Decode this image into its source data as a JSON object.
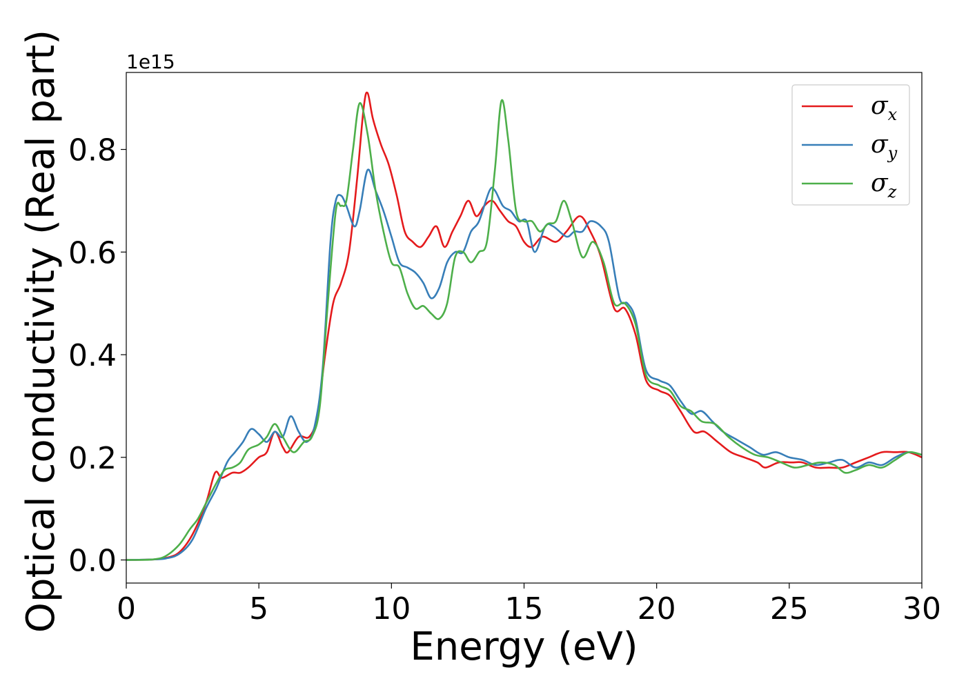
{
  "chart_data": {
    "type": "line",
    "title": "",
    "xlabel": "Energy (eV)",
    "ylabel": "Optical conductivity (Real part)",
    "offset_text": "1e15",
    "xlim": [
      0,
      30
    ],
    "ylim": [
      -0.045,
      0.95
    ],
    "xticks": [
      0,
      5,
      10,
      15,
      20,
      25,
      30
    ],
    "xtick_labels": [
      "0",
      "5",
      "10",
      "15",
      "20",
      "25",
      "30"
    ],
    "yticks": [
      0.0,
      0.2,
      0.4,
      0.6,
      0.8
    ],
    "ytick_labels": [
      "0.0",
      "0.2",
      "0.4",
      "0.6",
      "0.8"
    ],
    "grid": false,
    "legend_position": "top-right",
    "series": [
      {
        "symbol": "σ",
        "subscript": "x",
        "color": "#e41a1c",
        "points": [
          [
            0,
            0
          ],
          [
            1,
            0.001
          ],
          [
            1.5,
            0.004
          ],
          [
            2,
            0.015
          ],
          [
            2.5,
            0.05
          ],
          [
            3,
            0.11
          ],
          [
            3.35,
            0.17
          ],
          [
            3.6,
            0.16
          ],
          [
            4,
            0.17
          ],
          [
            4.3,
            0.17
          ],
          [
            4.6,
            0.18
          ],
          [
            5,
            0.2
          ],
          [
            5.3,
            0.21
          ],
          [
            5.6,
            0.25
          ],
          [
            5.9,
            0.22
          ],
          [
            6.1,
            0.21
          ],
          [
            6.5,
            0.24
          ],
          [
            6.9,
            0.24
          ],
          [
            7.2,
            0.28
          ],
          [
            7.5,
            0.4
          ],
          [
            7.8,
            0.5
          ],
          [
            8.1,
            0.54
          ],
          [
            8.4,
            0.6
          ],
          [
            8.7,
            0.74
          ],
          [
            8.95,
            0.88
          ],
          [
            9.1,
            0.91
          ],
          [
            9.3,
            0.86
          ],
          [
            9.6,
            0.81
          ],
          [
            9.9,
            0.77
          ],
          [
            10.2,
            0.71
          ],
          [
            10.5,
            0.64
          ],
          [
            10.8,
            0.62
          ],
          [
            11.1,
            0.61
          ],
          [
            11.4,
            0.63
          ],
          [
            11.7,
            0.65
          ],
          [
            12,
            0.61
          ],
          [
            12.3,
            0.64
          ],
          [
            12.6,
            0.67
          ],
          [
            12.9,
            0.7
          ],
          [
            13.2,
            0.67
          ],
          [
            13.5,
            0.69
          ],
          [
            13.8,
            0.7
          ],
          [
            14.1,
            0.68
          ],
          [
            14.4,
            0.66
          ],
          [
            14.7,
            0.65
          ],
          [
            15,
            0.62
          ],
          [
            15.3,
            0.61
          ],
          [
            15.7,
            0.63
          ],
          [
            16.2,
            0.62
          ],
          [
            16.6,
            0.64
          ],
          [
            17.1,
            0.67
          ],
          [
            17.5,
            0.64
          ],
          [
            17.9,
            0.59
          ],
          [
            18.4,
            0.49
          ],
          [
            18.8,
            0.49
          ],
          [
            19.2,
            0.44
          ],
          [
            19.6,
            0.35
          ],
          [
            20.1,
            0.33
          ],
          [
            20.5,
            0.32
          ],
          [
            20.9,
            0.29
          ],
          [
            21.4,
            0.25
          ],
          [
            21.8,
            0.25
          ],
          [
            22.3,
            0.23
          ],
          [
            22.8,
            0.21
          ],
          [
            23.3,
            0.2
          ],
          [
            23.8,
            0.19
          ],
          [
            24.1,
            0.18
          ],
          [
            24.6,
            0.19
          ],
          [
            25.1,
            0.19
          ],
          [
            25.5,
            0.19
          ],
          [
            26,
            0.18
          ],
          [
            26.5,
            0.18
          ],
          [
            27,
            0.18
          ],
          [
            27.5,
            0.19
          ],
          [
            28,
            0.2
          ],
          [
            28.5,
            0.21
          ],
          [
            29,
            0.21
          ],
          [
            29.5,
            0.21
          ],
          [
            30,
            0.2
          ]
        ]
      },
      {
        "symbol": "σ",
        "subscript": "y",
        "color": "#377eb8",
        "points": [
          [
            0,
            0
          ],
          [
            1,
            0.001
          ],
          [
            1.5,
            0.003
          ],
          [
            2,
            0.012
          ],
          [
            2.5,
            0.04
          ],
          [
            3,
            0.1
          ],
          [
            3.4,
            0.14
          ],
          [
            3.8,
            0.19
          ],
          [
            4.1,
            0.21
          ],
          [
            4.4,
            0.23
          ],
          [
            4.7,
            0.255
          ],
          [
            5,
            0.245
          ],
          [
            5.3,
            0.23
          ],
          [
            5.6,
            0.25
          ],
          [
            5.9,
            0.24
          ],
          [
            6.2,
            0.28
          ],
          [
            6.5,
            0.25
          ],
          [
            6.8,
            0.23
          ],
          [
            7.1,
            0.26
          ],
          [
            7.4,
            0.37
          ],
          [
            7.7,
            0.62
          ],
          [
            7.9,
            0.7
          ],
          [
            8.1,
            0.71
          ],
          [
            8.3,
            0.69
          ],
          [
            8.6,
            0.65
          ],
          [
            8.8,
            0.68
          ],
          [
            9.1,
            0.76
          ],
          [
            9.4,
            0.72
          ],
          [
            9.7,
            0.68
          ],
          [
            10,
            0.63
          ],
          [
            10.3,
            0.58
          ],
          [
            10.6,
            0.57
          ],
          [
            10.9,
            0.56
          ],
          [
            11.2,
            0.54
          ],
          [
            11.5,
            0.51
          ],
          [
            11.8,
            0.53
          ],
          [
            12.1,
            0.58
          ],
          [
            12.4,
            0.6
          ],
          [
            12.7,
            0.6
          ],
          [
            13,
            0.64
          ],
          [
            13.3,
            0.66
          ],
          [
            13.7,
            0.72
          ],
          [
            13.9,
            0.72
          ],
          [
            14.2,
            0.69
          ],
          [
            14.5,
            0.68
          ],
          [
            14.8,
            0.66
          ],
          [
            15.1,
            0.66
          ],
          [
            15.4,
            0.6
          ],
          [
            15.8,
            0.65
          ],
          [
            16.1,
            0.65
          ],
          [
            16.6,
            0.63
          ],
          [
            16.9,
            0.64
          ],
          [
            17.2,
            0.64
          ],
          [
            17.5,
            0.66
          ],
          [
            17.9,
            0.65
          ],
          [
            18.2,
            0.62
          ],
          [
            18.6,
            0.51
          ],
          [
            18.9,
            0.5
          ],
          [
            19.2,
            0.47
          ],
          [
            19.6,
            0.37
          ],
          [
            20.1,
            0.35
          ],
          [
            20.5,
            0.34
          ],
          [
            20.9,
            0.31
          ],
          [
            21.3,
            0.285
          ],
          [
            21.7,
            0.29
          ],
          [
            22.1,
            0.27
          ],
          [
            22.5,
            0.25
          ],
          [
            23,
            0.235
          ],
          [
            23.5,
            0.22
          ],
          [
            24,
            0.205
          ],
          [
            24.5,
            0.21
          ],
          [
            25,
            0.2
          ],
          [
            25.5,
            0.195
          ],
          [
            26,
            0.185
          ],
          [
            26.5,
            0.19
          ],
          [
            27,
            0.195
          ],
          [
            27.5,
            0.18
          ],
          [
            28,
            0.19
          ],
          [
            28.5,
            0.185
          ],
          [
            29,
            0.2
          ],
          [
            29.5,
            0.21
          ],
          [
            30,
            0.205
          ]
        ]
      },
      {
        "symbol": "σ",
        "subscript": "z",
        "color": "#4daf4a",
        "points": [
          [
            0,
            0
          ],
          [
            1,
            0.001
          ],
          [
            1.5,
            0.008
          ],
          [
            2,
            0.03
          ],
          [
            2.4,
            0.06
          ],
          [
            2.7,
            0.08
          ],
          [
            3,
            0.11
          ],
          [
            3.4,
            0.15
          ],
          [
            3.7,
            0.175
          ],
          [
            4,
            0.18
          ],
          [
            4.3,
            0.19
          ],
          [
            4.6,
            0.215
          ],
          [
            5,
            0.225
          ],
          [
            5.3,
            0.24
          ],
          [
            5.6,
            0.265
          ],
          [
            5.9,
            0.24
          ],
          [
            6.3,
            0.21
          ],
          [
            6.7,
            0.23
          ],
          [
            7,
            0.24
          ],
          [
            7.3,
            0.3
          ],
          [
            7.6,
            0.5
          ],
          [
            7.9,
            0.68
          ],
          [
            8.1,
            0.69
          ],
          [
            8.3,
            0.7
          ],
          [
            8.55,
            0.8
          ],
          [
            8.8,
            0.89
          ],
          [
            9.1,
            0.83
          ],
          [
            9.4,
            0.72
          ],
          [
            9.7,
            0.64
          ],
          [
            10,
            0.58
          ],
          [
            10.3,
            0.57
          ],
          [
            10.6,
            0.52
          ],
          [
            10.9,
            0.49
          ],
          [
            11.2,
            0.495
          ],
          [
            11.5,
            0.48
          ],
          [
            11.8,
            0.47
          ],
          [
            12.1,
            0.5
          ],
          [
            12.4,
            0.59
          ],
          [
            12.7,
            0.6
          ],
          [
            13,
            0.58
          ],
          [
            13.3,
            0.6
          ],
          [
            13.6,
            0.62
          ],
          [
            13.9,
            0.76
          ],
          [
            14.15,
            0.895
          ],
          [
            14.4,
            0.82
          ],
          [
            14.7,
            0.68
          ],
          [
            15,
            0.66
          ],
          [
            15.3,
            0.66
          ],
          [
            15.6,
            0.64
          ],
          [
            15.9,
            0.655
          ],
          [
            16.2,
            0.66
          ],
          [
            16.5,
            0.7
          ],
          [
            16.8,
            0.66
          ],
          [
            17.2,
            0.59
          ],
          [
            17.6,
            0.62
          ],
          [
            18,
            0.58
          ],
          [
            18.4,
            0.5
          ],
          [
            18.8,
            0.5
          ],
          [
            19.2,
            0.46
          ],
          [
            19.6,
            0.36
          ],
          [
            20.1,
            0.34
          ],
          [
            20.5,
            0.33
          ],
          [
            20.9,
            0.3
          ],
          [
            21.3,
            0.29
          ],
          [
            21.7,
            0.27
          ],
          [
            22.2,
            0.265
          ],
          [
            22.7,
            0.24
          ],
          [
            23.2,
            0.22
          ],
          [
            23.7,
            0.205
          ],
          [
            24.2,
            0.2
          ],
          [
            24.7,
            0.19
          ],
          [
            25.2,
            0.18
          ],
          [
            25.7,
            0.185
          ],
          [
            26.2,
            0.19
          ],
          [
            26.7,
            0.185
          ],
          [
            27.1,
            0.17
          ],
          [
            27.5,
            0.175
          ],
          [
            28,
            0.185
          ],
          [
            28.5,
            0.18
          ],
          [
            29,
            0.195
          ],
          [
            29.5,
            0.21
          ],
          [
            30,
            0.205
          ]
        ]
      }
    ]
  }
}
